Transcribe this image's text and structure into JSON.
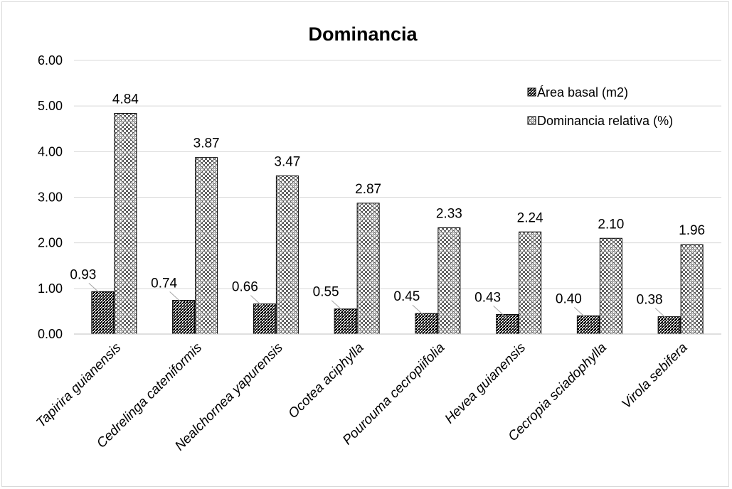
{
  "chart_data": {
    "type": "bar",
    "title": "Dominancia",
    "xlabel": "",
    "ylabel": "",
    "ylim": [
      0,
      6
    ],
    "yticks": [
      "0.00",
      "1.00",
      "2.00",
      "3.00",
      "4.00",
      "5.00",
      "6.00"
    ],
    "grid": true,
    "legend_position": "top-right",
    "categories": [
      "Tapirira guianensis",
      "Cedrelinga cateniformis",
      "Nealchornea yapurensis",
      "Ocotea aciphylla",
      "Pourouma cecropiifolia",
      "Hevea guianensis",
      "Cecropia sciadophylla",
      "Virola sebifera"
    ],
    "series": [
      {
        "name": "Área basal (m2)",
        "values": [
          0.93,
          0.74,
          0.66,
          0.55,
          0.45,
          0.43,
          0.4,
          0.38
        ],
        "labels": [
          "0.93",
          "0.74",
          "0.66",
          "0.55",
          "0.45",
          "0.43",
          "0.40",
          "0.38"
        ],
        "pattern": "dark-checker"
      },
      {
        "name": "Dominancia relativa (%)",
        "values": [
          4.84,
          3.87,
          3.47,
          2.87,
          2.33,
          2.24,
          2.1,
          1.96
        ],
        "labels": [
          "4.84",
          "3.87",
          "3.47",
          "2.87",
          "2.33",
          "2.24",
          "2.10",
          "1.96"
        ],
        "pattern": "light-checker"
      }
    ],
    "colors": {
      "text": "#000000",
      "grid": "#d9d9d9",
      "bar_outline": "#000000",
      "leader_line": "#a6a6a6"
    }
  }
}
